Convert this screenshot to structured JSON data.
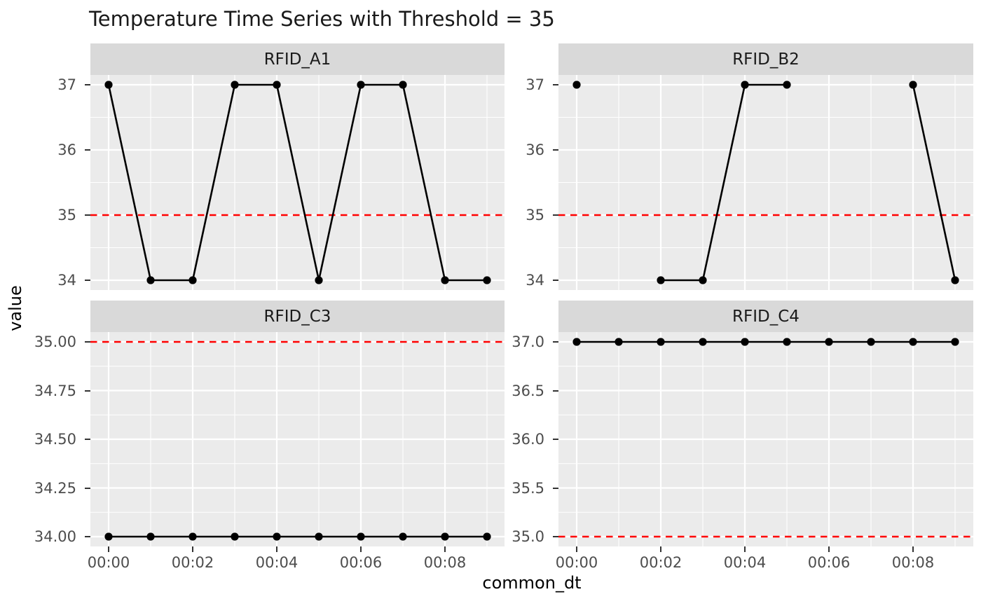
{
  "title": "Temperature Time Series with Threshold = 35",
  "x_axis_label": "common_dt",
  "y_axis_label": "value",
  "colors": {
    "background": "#FFFFFF",
    "panel_background": "#EBEBEB",
    "strip_background": "#D9D9D9",
    "gridline": "#FFFFFF",
    "data_line": "#000000",
    "data_point": "#000000",
    "threshold_line": "#FF0000",
    "tick_text": "#4D4D4D",
    "tick_mark": "#333333",
    "strip_text": "#1A1A1A"
  },
  "chart_data": {
    "type": "line",
    "faceted": true,
    "title": "Temperature Time Series with Threshold = 35",
    "xlabel": "common_dt",
    "ylabel": "value",
    "x": [
      "00:00",
      "00:01",
      "00:02",
      "00:03",
      "00:04",
      "00:05",
      "00:06",
      "00:07",
      "00:08",
      "00:09"
    ],
    "x_major_ticks": {
      "indices": [
        0,
        2,
        4,
        6,
        8
      ],
      "labels": [
        "00:00",
        "00:02",
        "00:04",
        "00:06",
        "00:08"
      ]
    },
    "x_minor_indices": [
      1,
      3,
      5,
      7,
      9
    ],
    "threshold": 35,
    "threshold_style": "red dashed horizontal line",
    "grid": true,
    "legend_position": "none",
    "panels": [
      {
        "facet": "RFID_A1",
        "values": [
          37,
          34,
          34,
          37,
          37,
          34,
          37,
          37,
          34,
          34
        ],
        "ylim": [
          34,
          37
        ],
        "y_ticks": [
          {
            "label": "37",
            "value": 37
          },
          {
            "label": "36",
            "value": 36
          },
          {
            "label": "35",
            "value": 35
          },
          {
            "label": "34",
            "value": 34
          }
        ],
        "y_minor": [
          34.5,
          35.5,
          36.5
        ]
      },
      {
        "facet": "RFID_B2",
        "values": [
          37,
          null,
          34,
          34,
          37,
          37,
          null,
          null,
          37,
          34
        ],
        "ylim": [
          34,
          37
        ],
        "y_ticks": [
          {
            "label": "37",
            "value": 37
          },
          {
            "label": "36",
            "value": 36
          },
          {
            "label": "35",
            "value": 35
          },
          {
            "label": "34",
            "value": 34
          }
        ],
        "y_minor": [
          34.5,
          35.5,
          36.5
        ]
      },
      {
        "facet": "RFID_C3",
        "values": [
          34,
          34,
          34,
          34,
          34,
          34,
          34,
          34,
          34,
          34
        ],
        "ylim": [
          34,
          35
        ],
        "y_ticks": [
          {
            "label": "35.00",
            "value": 35
          },
          {
            "label": "34.75",
            "value": 34.75
          },
          {
            "label": "34.50",
            "value": 34.5
          },
          {
            "label": "34.25",
            "value": 34.25
          },
          {
            "label": "34.00",
            "value": 34
          }
        ],
        "y_minor": [
          34.125,
          34.375,
          34.625,
          34.875
        ]
      },
      {
        "facet": "RFID_C4",
        "values": [
          37,
          37,
          37,
          37,
          37,
          37,
          37,
          37,
          37,
          37
        ],
        "ylim": [
          35,
          37
        ],
        "y_ticks": [
          {
            "label": "37.0",
            "value": 37
          },
          {
            "label": "36.5",
            "value": 36.5
          },
          {
            "label": "36.0",
            "value": 36
          },
          {
            "label": "35.5",
            "value": 35.5
          },
          {
            "label": "35.0",
            "value": 35
          }
        ],
        "y_minor": [
          35.25,
          35.75,
          36.25,
          36.75
        ]
      }
    ]
  }
}
